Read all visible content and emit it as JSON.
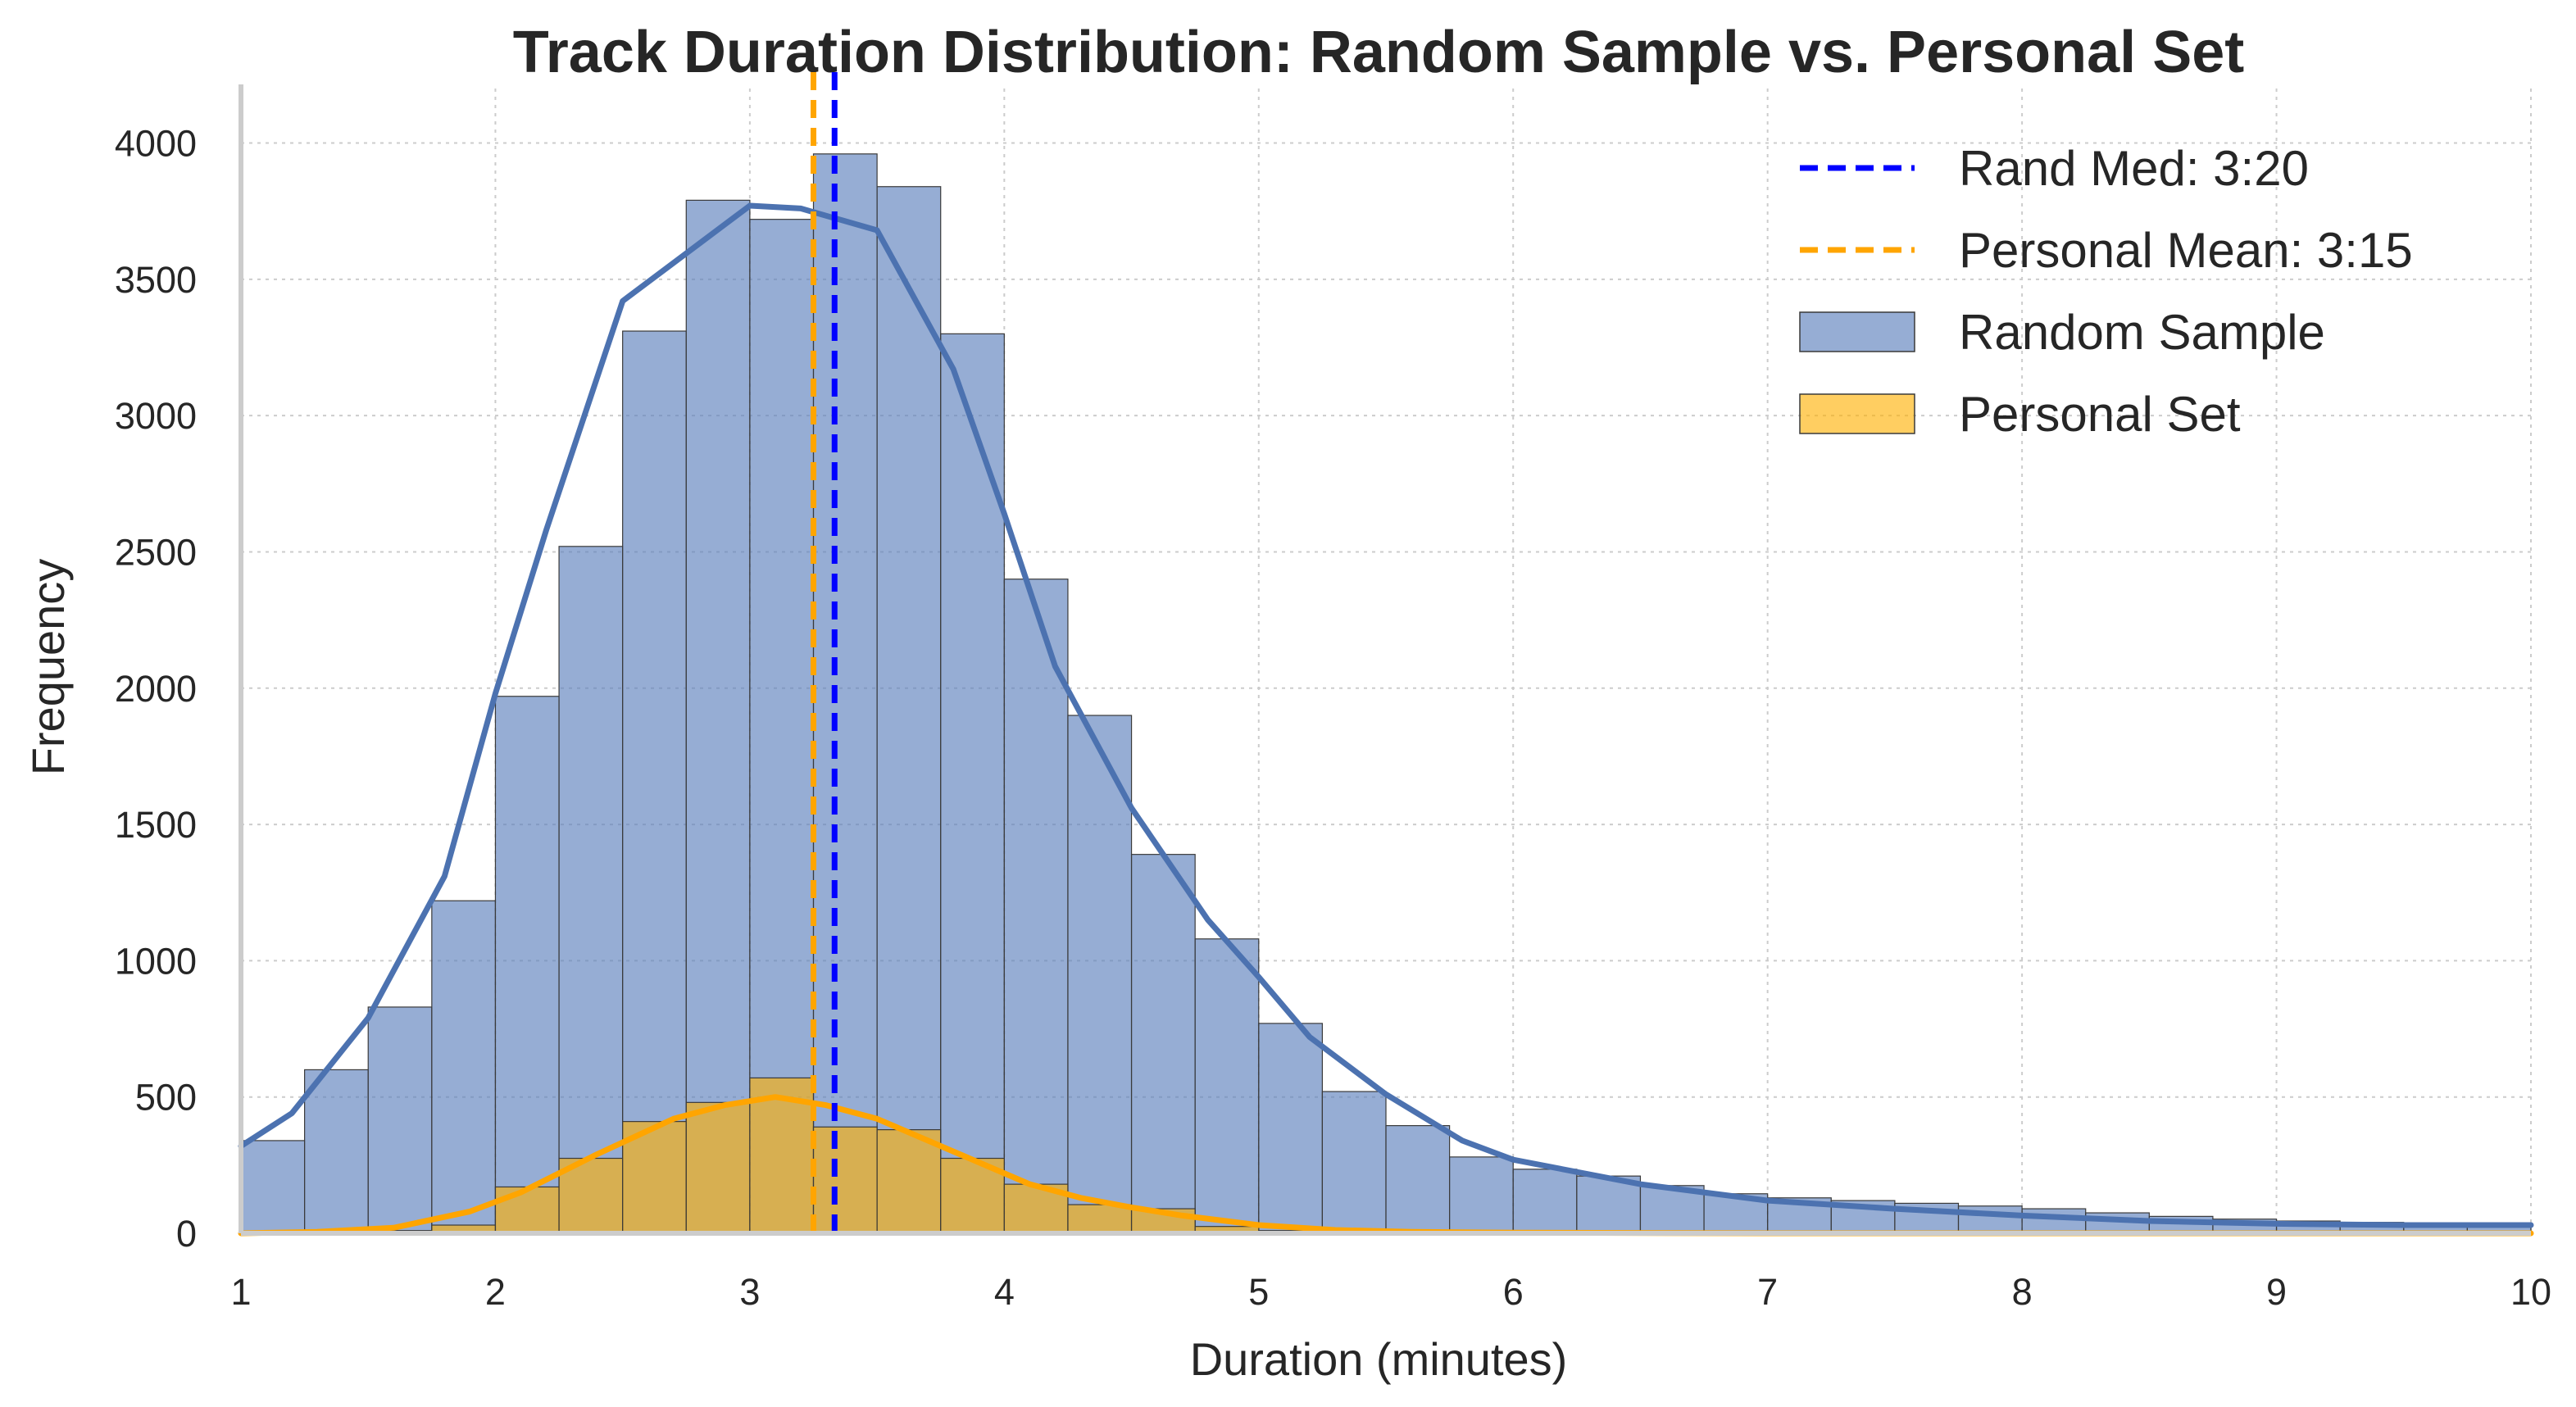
{
  "chart_data": {
    "type": "bar",
    "title": "Track Duration Distribution: Random Sample vs. Personal Set",
    "xlabel": "Duration (minutes)",
    "ylabel": "Frequency",
    "xlim": [
      1,
      10
    ],
    "ylim": [
      0,
      4200
    ],
    "xticks": [
      1,
      2,
      3,
      4,
      5,
      6,
      7,
      8,
      9,
      10
    ],
    "yticks": [
      0,
      500,
      1000,
      1500,
      2000,
      2500,
      3000,
      3500,
      4000
    ],
    "grid": true,
    "legend_position": "top-right",
    "bin_width": 0.25,
    "bin_start": 1.0,
    "series": [
      {
        "name": "Random Sample",
        "color": "#5b7fbb",
        "kde_color": "#4c72b0",
        "values": [
          340,
          600,
          830,
          1220,
          1970,
          2520,
          3310,
          3790,
          3720,
          3960,
          3840,
          3300,
          2400,
          1900,
          1390,
          1080,
          770,
          520,
          395,
          280,
          235,
          210,
          175,
          145,
          130,
          120,
          110,
          100,
          90,
          75,
          62,
          52,
          45,
          40,
          35,
          30
        ]
      },
      {
        "name": "Personal Set",
        "color": "#ffb000",
        "kde_color": "#ffa500",
        "values": [
          0,
          5,
          10,
          30,
          170,
          275,
          410,
          480,
          570,
          390,
          380,
          275,
          180,
          105,
          90,
          25,
          10,
          5,
          0,
          0,
          0,
          0,
          0,
          0,
          0,
          0,
          0,
          0,
          0,
          0,
          0,
          0,
          0,
          0,
          0,
          0
        ]
      }
    ],
    "kde": {
      "random": {
        "x": [
          1.0,
          1.2,
          1.5,
          1.8,
          2.0,
          2.2,
          2.5,
          2.8,
          3.0,
          3.2,
          3.5,
          3.8,
          4.0,
          4.2,
          4.5,
          4.8,
          5.0,
          5.2,
          5.5,
          5.8,
          6.0,
          6.5,
          7.0,
          7.5,
          8.0,
          8.5,
          9.0,
          9.5,
          10.0
        ],
        "y": [
          320,
          440,
          790,
          1310,
          1980,
          2580,
          3420,
          3630,
          3770,
          3760,
          3680,
          3170,
          2640,
          2080,
          1560,
          1150,
          940,
          720,
          510,
          340,
          270,
          180,
          120,
          90,
          65,
          45,
          35,
          30,
          30
        ]
      },
      "personal": {
        "x": [
          1.0,
          1.3,
          1.6,
          1.9,
          2.1,
          2.4,
          2.7,
          2.9,
          3.1,
          3.3,
          3.5,
          3.7,
          3.9,
          4.1,
          4.3,
          4.5,
          4.7,
          5.0,
          5.3,
          5.6,
          6.0,
          7.0,
          8.0,
          9.0,
          10.0
        ],
        "y": [
          0,
          5,
          20,
          80,
          150,
          290,
          420,
          470,
          500,
          470,
          420,
          340,
          260,
          180,
          130,
          95,
          65,
          30,
          12,
          5,
          2,
          0,
          0,
          0,
          0
        ]
      }
    },
    "reference_lines": [
      {
        "label": "Rand Med: 3:20",
        "x": 3.333,
        "color": "#0000ff"
      },
      {
        "label": "Personal Mean: 3:15",
        "x": 3.25,
        "color": "#ffa500"
      }
    ]
  }
}
